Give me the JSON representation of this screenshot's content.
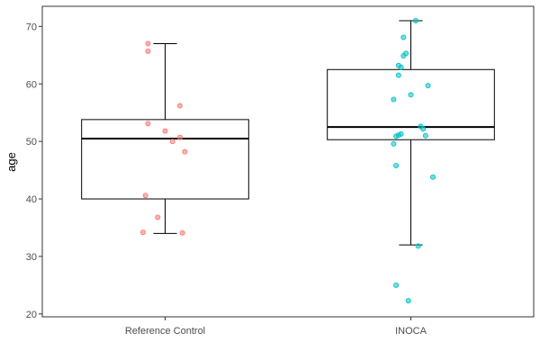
{
  "chart_data": {
    "type": "boxplot",
    "title": "",
    "xlabel": "",
    "ylabel": "age",
    "ylim": [
      19.5,
      73.5
    ],
    "yticks": [
      20,
      30,
      40,
      50,
      60,
      70
    ],
    "grid": false,
    "legend": "none",
    "categories": [
      "Reference Control",
      "INOCA"
    ],
    "boxes": [
      {
        "category": "Reference Control",
        "whisker_low": 34,
        "q1": 40,
        "median": 50.5,
        "q3": 53.8,
        "whisker_high": 67
      },
      {
        "category": "INOCA",
        "whisker_low": 32,
        "q1": 50.3,
        "median": 52.5,
        "q3": 62.5,
        "whisker_high": 71
      }
    ],
    "points": [
      {
        "category": "Reference Control",
        "color": "#f8766d",
        "values": [
          67,
          65.7,
          56.2,
          53.1,
          51.8,
          50.7,
          50,
          48.2,
          40.6,
          36.8,
          34.2,
          34.1
        ],
        "jitter": [
          -0.07,
          -0.07,
          0.06,
          -0.07,
          0.0,
          0.06,
          0.03,
          0.08,
          -0.08,
          -0.03,
          -0.09,
          0.07
        ]
      },
      {
        "category": "INOCA",
        "color": "#00bfc4",
        "values": [
          71,
          68.1,
          65.3,
          64.9,
          63.2,
          62.9,
          61.5,
          59.7,
          58.1,
          57.3,
          52.6,
          52.2,
          51.3,
          51.1,
          51.0,
          50.9,
          49.6,
          45.8,
          43.8,
          31.8,
          25.0,
          22.3
        ],
        "jitter": [
          0.02,
          -0.03,
          -0.02,
          -0.03,
          -0.05,
          -0.04,
          -0.05,
          0.07,
          0.0,
          -0.07,
          0.04,
          0.05,
          -0.04,
          -0.05,
          0.06,
          -0.06,
          -0.07,
          -0.06,
          0.09,
          0.03,
          -0.06,
          -0.01
        ]
      }
    ]
  }
}
